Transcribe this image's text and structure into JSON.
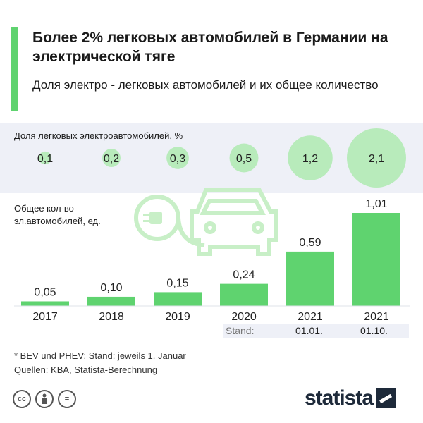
{
  "header": {
    "title": "Более 2% легковых автомобилей в Германии на электрической тяге",
    "subtitle": "Доля электро - легковых автомобилей  и их общее количество"
  },
  "colors": {
    "accent": "#5fd36f",
    "bubble": "#b8ebbb",
    "band": "#eef0f7",
    "car_icon": "#c8efc7"
  },
  "chart_data": [
    {
      "type": "scatter",
      "title": "Доля легковых электроавтомобилей, %",
      "categories": [
        "2017",
        "2018",
        "2019",
        "2020",
        "2021",
        "2021"
      ],
      "values": [
        0.1,
        0.2,
        0.3,
        0.5,
        1.2,
        2.1
      ],
      "value_labels": [
        "0,1",
        "0,2",
        "0,3",
        "0,5",
        "1,2",
        "2,1"
      ],
      "encoding": "bubble size"
    },
    {
      "type": "bar",
      "title": "Общее кол-во эл.автомобилей, ед.",
      "categories": [
        "2017",
        "2018",
        "2019",
        "2020",
        "2021",
        "2021"
      ],
      "values": [
        0.05,
        0.1,
        0.15,
        0.24,
        0.59,
        1.01
      ],
      "value_labels": [
        "0,05",
        "0,10",
        "0,15",
        "0,24",
        "0,59",
        "1,01"
      ],
      "ylim": [
        0,
        1.01
      ]
    }
  ],
  "stand": {
    "label": "Stand:",
    "dates": [
      "01.01.",
      "01.10."
    ]
  },
  "footer": {
    "note": "* BEV und PHEV; Stand: jeweils 1. Januar",
    "source": "Quellen: KBA, Statista-Berechnung",
    "logo": "statista",
    "license_icons": [
      "cc-icon",
      "by-icon",
      "equals-icon"
    ]
  }
}
